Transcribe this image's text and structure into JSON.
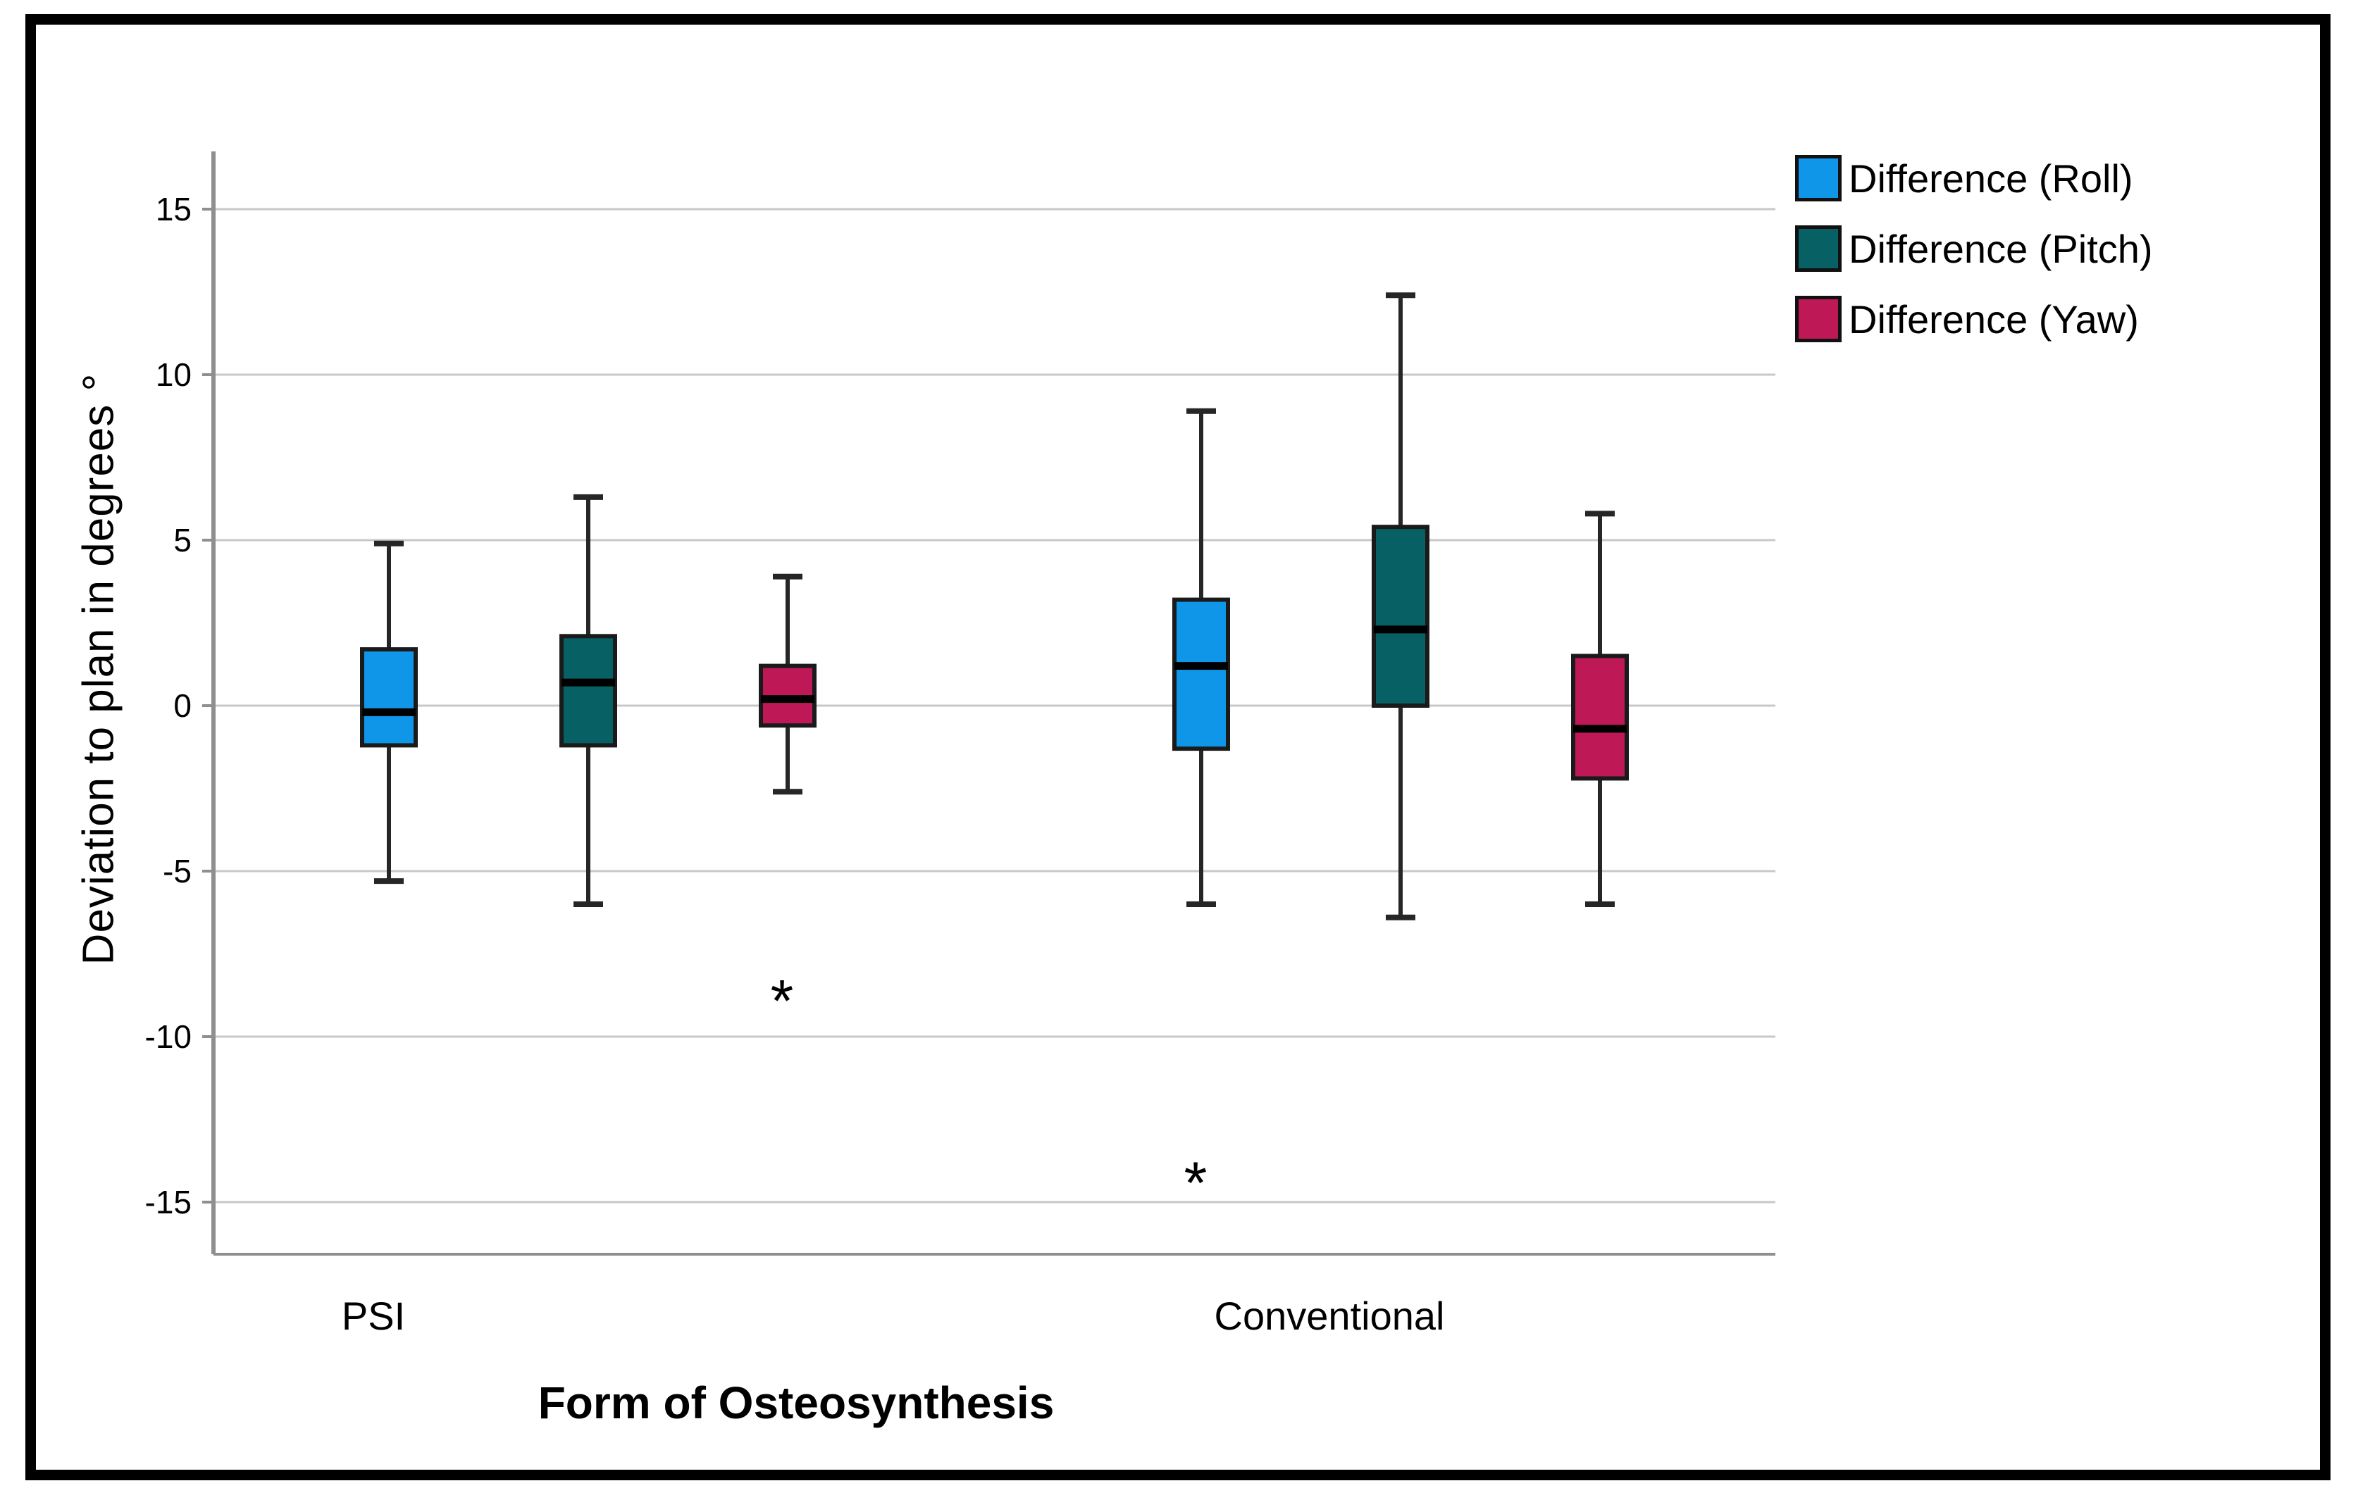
{
  "figure": {
    "background": "#ffffff",
    "border_color": "#000000",
    "gridline_color": "#c8c8c8",
    "axis_color": "#8f8f8f",
    "box_outline_color": "#1a1a1a"
  },
  "chart_data": {
    "type": "boxplot",
    "title": "",
    "xlabel": "Form of Osteosynthesis",
    "ylabel": "Deviation to plan in degrees °",
    "categories": [
      "PSI",
      "Conventional"
    ],
    "yticks": [
      15,
      10,
      5,
      0,
      -5,
      -10,
      -15
    ],
    "ylim": [
      -16.6,
      16.7
    ],
    "grid": true,
    "legend_position": "top-right",
    "outlier_marker": "*",
    "series": [
      {
        "name": "Difference (Roll)",
        "color": "#1096E8",
        "boxes": [
          {
            "category": "PSI",
            "whisker_low": -5.3,
            "q1": -1.2,
            "median": -0.2,
            "q3": 1.7,
            "whisker_high": 4.9,
            "outliers": []
          },
          {
            "category": "Conventional",
            "whisker_low": -6.0,
            "q1": -1.3,
            "median": 1.2,
            "q3": 3.2,
            "whisker_high": 8.9,
            "outliers": [
              -14.1
            ]
          }
        ]
      },
      {
        "name": "Difference (Pitch)",
        "color": "#066064",
        "boxes": [
          {
            "category": "PSI",
            "whisker_low": -6.0,
            "q1": -1.2,
            "median": 0.7,
            "q3": 2.1,
            "whisker_high": 6.3,
            "outliers": []
          },
          {
            "category": "Conventional",
            "whisker_low": -6.4,
            "q1": 0.0,
            "median": 2.3,
            "q3": 5.4,
            "whisker_high": 12.4,
            "outliers": []
          }
        ]
      },
      {
        "name": "Difference (Yaw)",
        "color": "#BE1857",
        "boxes": [
          {
            "category": "PSI",
            "whisker_low": -2.6,
            "q1": -0.6,
            "median": 0.2,
            "q3": 1.2,
            "whisker_high": 3.9,
            "outliers": [
              -8.6
            ]
          },
          {
            "category": "Conventional",
            "whisker_low": -6.0,
            "q1": -2.2,
            "median": -0.7,
            "q3": 1.5,
            "whisker_high": 5.8,
            "outliers": []
          }
        ]
      }
    ]
  }
}
